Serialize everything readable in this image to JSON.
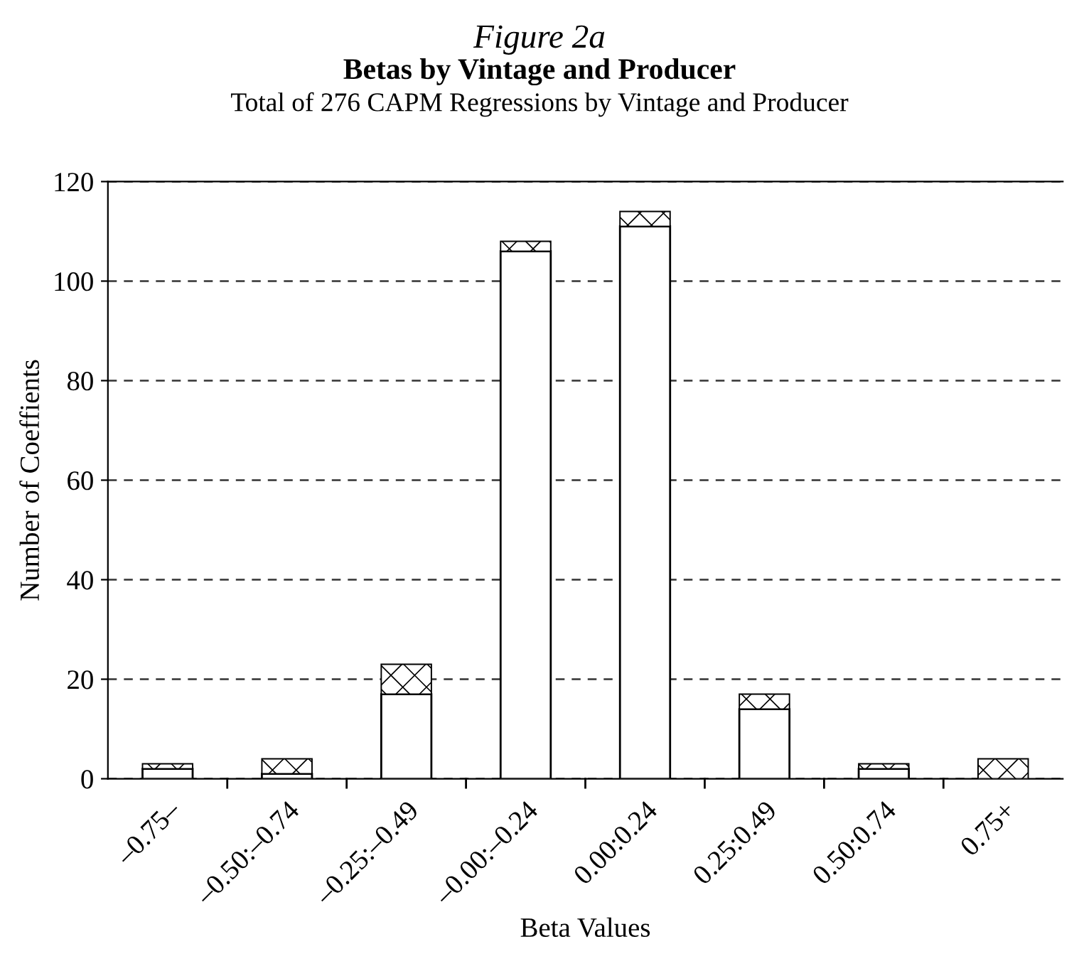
{
  "chart_data": {
    "type": "bar",
    "title": "Betas by Vintage and Producer",
    "subtitle": "Total of 276 CAPM Regressions by Vintage and Producer",
    "annotations": [
      "Figure 2a"
    ],
    "xlabel": "Beta Values",
    "ylabel": "Number of Coeffients",
    "categories": [
      "–0.75–",
      "–0.50:–0.74",
      "–0.25:–0.49",
      "–0.00:–0.24",
      "0.00:0.24",
      "0.25:0.49",
      "0.50:0.74",
      "0.75+"
    ],
    "stacked": true,
    "series": [
      {
        "color": "#ffffff",
        "values": [
          2,
          1,
          17,
          106,
          111,
          14,
          2,
          0
        ]
      },
      {
        "color": "#000000",
        "values": [
          1,
          3,
          6,
          2,
          3,
          3,
          1,
          4
        ]
      }
    ],
    "ylim": [
      0,
      120
    ],
    "yticks": [
      0,
      20,
      40,
      60,
      80,
      100,
      120
    ],
    "grid": "y"
  }
}
